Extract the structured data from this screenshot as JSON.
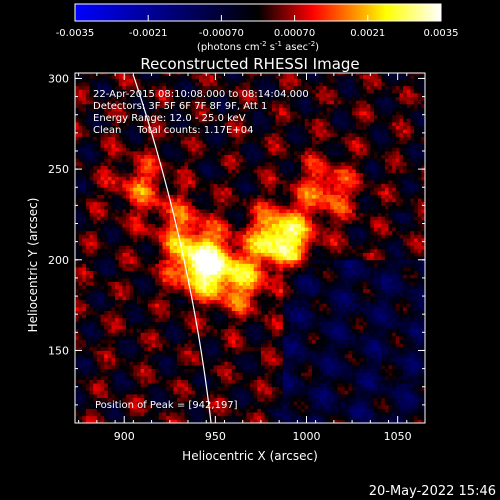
{
  "chart_data": {
    "type": "heatmap",
    "title": "Reconstructed RHESSI Image",
    "xlabel": "Heliocentric X (arcsec)",
    "ylabel": "Heliocentric Y (arcsec)",
    "xlim": [
      873,
      1065
    ],
    "ylim": [
      110,
      303
    ],
    "x_ticks": [
      900,
      950,
      1000,
      1050
    ],
    "y_ticks": [
      150,
      200,
      250,
      300
    ],
    "colorbar": {
      "min": -0.0035,
      "max": 0.0035,
      "tick_values": [
        -0.0035,
        -0.0021,
        -0.0007,
        0.0007,
        0.0021,
        0.0035
      ],
      "tick_labels": [
        "-0.0035",
        "-0.0021",
        "-0.00070",
        "0.00070",
        "0.0021",
        "0.0035"
      ],
      "units_prefix": "(photons cm",
      "units_exp1": "-2",
      "units_mid1": " s",
      "units_exp2": "-1",
      "units_mid2": " asec",
      "units_exp3": "-2",
      "units_suffix": ")",
      "colors": [
        "#0000ff",
        "#000000",
        "#ff0000",
        "#ffff00",
        "#ffffff"
      ]
    },
    "annotations": [
      "22-Apr-2015 08:10:08.000 to 08:14:04.000",
      "Detectors: 3F 5F 6F 7F 8F 9F, Att 1",
      "Energy Range: 12.0 - 25.0 keV",
      "Clean     Total counts: 1.17E+04"
    ],
    "peak_label": "Position of Peak = [942,197]",
    "peak": [
      942,
      197
    ],
    "sources": [
      {
        "x": 942,
        "y": 197,
        "amplitude": 0.0035
      },
      {
        "x": 985,
        "y": 211,
        "amplitude": 0.0033
      },
      {
        "x": 962,
        "y": 187,
        "amplitude": 0.0018
      },
      {
        "x": 1010,
        "y": 238,
        "amplitude": 0.0016
      },
      {
        "x": 908,
        "y": 240,
        "amplitude": 0.0013
      },
      {
        "x": 930,
        "y": 218,
        "amplitude": 0.0012
      }
    ],
    "limb_color": "#ffffff"
  },
  "footer_timestamp": "20-May-2022 15:46"
}
